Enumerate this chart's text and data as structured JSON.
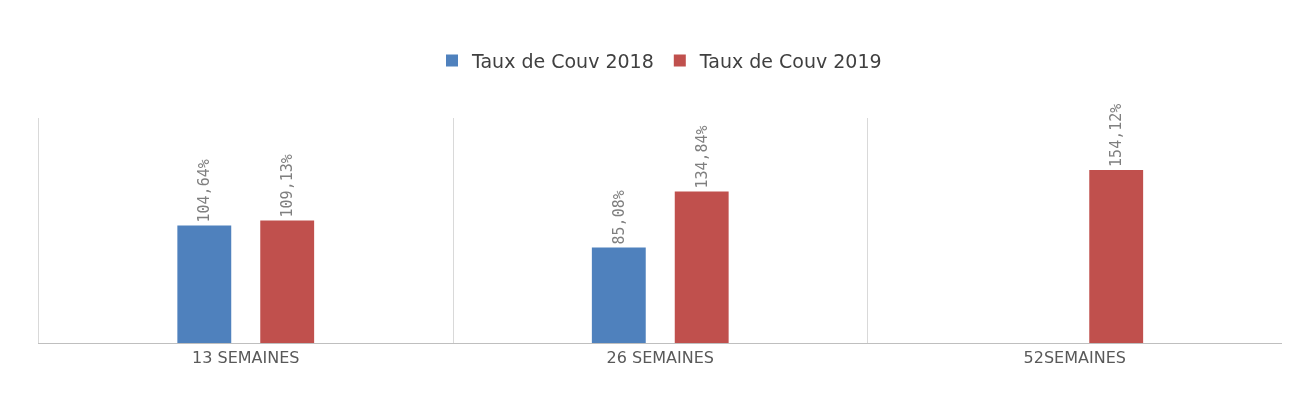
{
  "chart_data": {
    "type": "bar",
    "categories": [
      "13 SEMAINES",
      "26 SEMAINES",
      "52SEMAINES"
    ],
    "series": [
      {
        "name": "Taux de Couv 2018",
        "color": "#4f81bd",
        "values": [
          104.64,
          85.08,
          null
        ],
        "value_labels": [
          "104,64%",
          "85,08%",
          null
        ]
      },
      {
        "name": "Taux de Couv 2019",
        "color": "#c0504d",
        "values": [
          109.13,
          134.84,
          154.12
        ],
        "value_labels": [
          "109,13%",
          "134,84%",
          "154,12%"
        ]
      }
    ],
    "grid": "x",
    "legend": "top"
  }
}
